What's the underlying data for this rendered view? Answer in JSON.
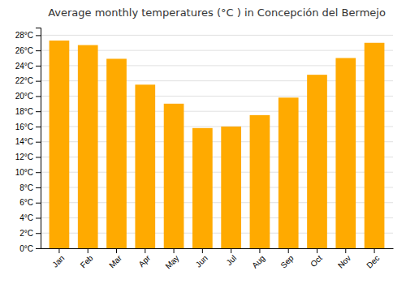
{
  "chart_data": {
    "type": "bar",
    "title": "Average monthly temperatures (°C ) in Concepción del Bermejo",
    "categories": [
      "Jan",
      "Feb",
      "Mar",
      "Apr",
      "May",
      "Jun",
      "Jul",
      "Aug",
      "Sep",
      "Oct",
      "Nov",
      "Dec"
    ],
    "values": [
      27.3,
      26.7,
      24.9,
      21.5,
      19.0,
      15.8,
      16.0,
      17.5,
      19.8,
      22.8,
      25.0,
      27.0
    ],
    "color": "#FFAA00",
    "ylim": [
      0,
      29
    ],
    "yticks": [
      {
        "value": 0,
        "label": "0°C"
      },
      {
        "value": 2,
        "label": "2°C"
      },
      {
        "value": 4,
        "label": "4°C"
      },
      {
        "value": 6,
        "label": "6°C"
      },
      {
        "value": 8,
        "label": "8°C"
      },
      {
        "value": 10,
        "label": "10°C"
      },
      {
        "value": 12,
        "label": "12°C"
      },
      {
        "value": 14,
        "label": "14°C"
      },
      {
        "value": 16,
        "label": "16°C"
      },
      {
        "value": 18,
        "label": "18°C"
      },
      {
        "value": 20,
        "label": "20°C"
      },
      {
        "value": 22,
        "label": "22°C"
      },
      {
        "value": 24,
        "label": "24°C"
      },
      {
        "value": 26,
        "label": "26°C"
      },
      {
        "value": 28,
        "label": "28°C"
      }
    ],
    "grid": true
  }
}
